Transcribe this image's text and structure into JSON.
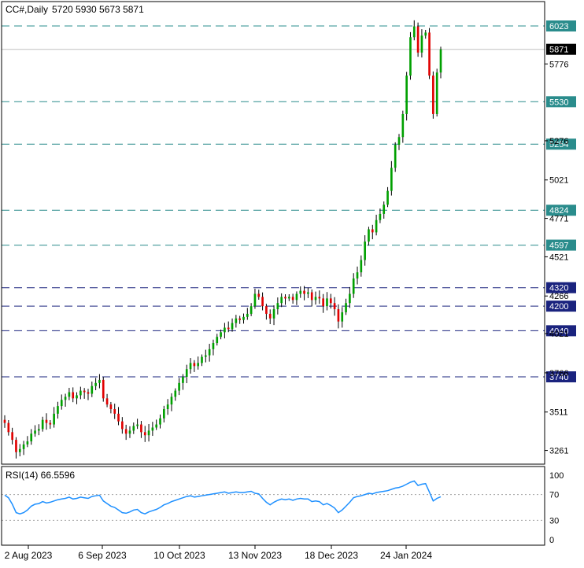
{
  "header": {
    "symbol": "CC#,Daily",
    "ohlc": "5720 5930 5673 5871"
  },
  "rsi": {
    "label": "RSI(14) 66.5596",
    "levels": [
      100,
      70,
      30,
      0
    ],
    "dashed_levels": [
      70,
      30
    ],
    "line_color": "#1e90ff"
  },
  "chart_data": [
    {
      "type": "candlestick",
      "title": "CC#,Daily",
      "x_ticks": [
        "2 Aug 2023",
        "6 Sep 2023",
        "10 Oct 2023",
        "13 Nov 2023",
        "18 Dec 2023",
        "24 Jan 2024"
      ],
      "y_ticks": [
        3261,
        3511,
        3766,
        4021,
        4266,
        4521,
        4771,
        5021,
        5276,
        5776
      ],
      "ylim": [
        3160,
        6100
      ],
      "current_price": 5871,
      "bull_color": "#00a000",
      "bear_color": "#e00000",
      "levels": [
        {
          "value": 6023,
          "label": "6023",
          "color": "#2a8c8c",
          "style": "dash"
        },
        {
          "value": 5530,
          "label": "5530",
          "color": "#2a8c8c",
          "style": "dash"
        },
        {
          "value": 5254,
          "label": "5254",
          "color": "#2a8c8c",
          "style": "dash"
        },
        {
          "value": 4824,
          "label": "4824",
          "color": "#2a8c8c",
          "style": "dash"
        },
        {
          "value": 4597,
          "label": "4597",
          "color": "#2a8c8c",
          "style": "dash"
        },
        {
          "value": 4320,
          "label": "4320",
          "color": "#1a237e",
          "style": "dash"
        },
        {
          "value": 4200,
          "label": "4200",
          "color": "#1a237e",
          "style": "dash"
        },
        {
          "value": 4040,
          "label": "4040",
          "color": "#1a237e",
          "style": "dash"
        },
        {
          "value": 3740,
          "label": "3740",
          "color": "#1a237e",
          "style": "dash"
        }
      ],
      "closes": [
        3440,
        3380,
        3330,
        3250,
        3270,
        3300,
        3320,
        3370,
        3390,
        3400,
        3460,
        3440,
        3430,
        3500,
        3550,
        3590,
        3610,
        3640,
        3600,
        3620,
        3650,
        3640,
        3630,
        3680,
        3700,
        3720,
        3600,
        3560,
        3530,
        3500,
        3450,
        3400,
        3370,
        3390,
        3420,
        3430,
        3380,
        3360,
        3390,
        3410,
        3430,
        3470,
        3530,
        3560,
        3610,
        3650,
        3700,
        3740,
        3790,
        3830,
        3810,
        3830,
        3870,
        3880,
        3920,
        3960,
        4000,
        4030,
        4060,
        4050,
        4090,
        4120,
        4110,
        4130,
        4150,
        4200,
        4280,
        4260,
        4200,
        4150,
        4120,
        4180,
        4220,
        4260,
        4250,
        4260,
        4240,
        4280,
        4300,
        4280,
        4290,
        4240,
        4260,
        4250,
        4200,
        4250,
        4220,
        4180,
        4100,
        4160,
        4220,
        4280,
        4380,
        4420,
        4500,
        4620,
        4700,
        4680,
        4760,
        4800,
        4860,
        4950,
        5100,
        5250,
        5300,
        5450,
        5700,
        5950,
        6020,
        5850,
        5960,
        5980,
        5700,
        5450,
        5720,
        5871
      ]
    },
    {
      "type": "line",
      "title": "RSI(14) 66.5596",
      "ylim": [
        0,
        100
      ],
      "y_ticks": [
        100,
        70,
        30,
        0
      ],
      "values": [
        69,
        65,
        55,
        42,
        40,
        42,
        46,
        52,
        55,
        56,
        59,
        57,
        58,
        60,
        62,
        63,
        64,
        66,
        63,
        64,
        66,
        65,
        64,
        67,
        68,
        69,
        60,
        56,
        52,
        50,
        46,
        42,
        41,
        43,
        46,
        47,
        42,
        40,
        43,
        45,
        47,
        50,
        54,
        56,
        59,
        61,
        63,
        65,
        67,
        68,
        66,
        67,
        68,
        69,
        70,
        71,
        72,
        73,
        74,
        72,
        73,
        74,
        73,
        73,
        74,
        75,
        72,
        71,
        64,
        58,
        54,
        58,
        61,
        63,
        62,
        63,
        61,
        63,
        64,
        63,
        63,
        59,
        60,
        59,
        54,
        56,
        53,
        49,
        42,
        46,
        52,
        58,
        65,
        67,
        68,
        70,
        72,
        71,
        73,
        74,
        75,
        76,
        78,
        80,
        81,
        83,
        86,
        89,
        91,
        84,
        86,
        87,
        74,
        60,
        64,
        66.56
      ]
    }
  ]
}
